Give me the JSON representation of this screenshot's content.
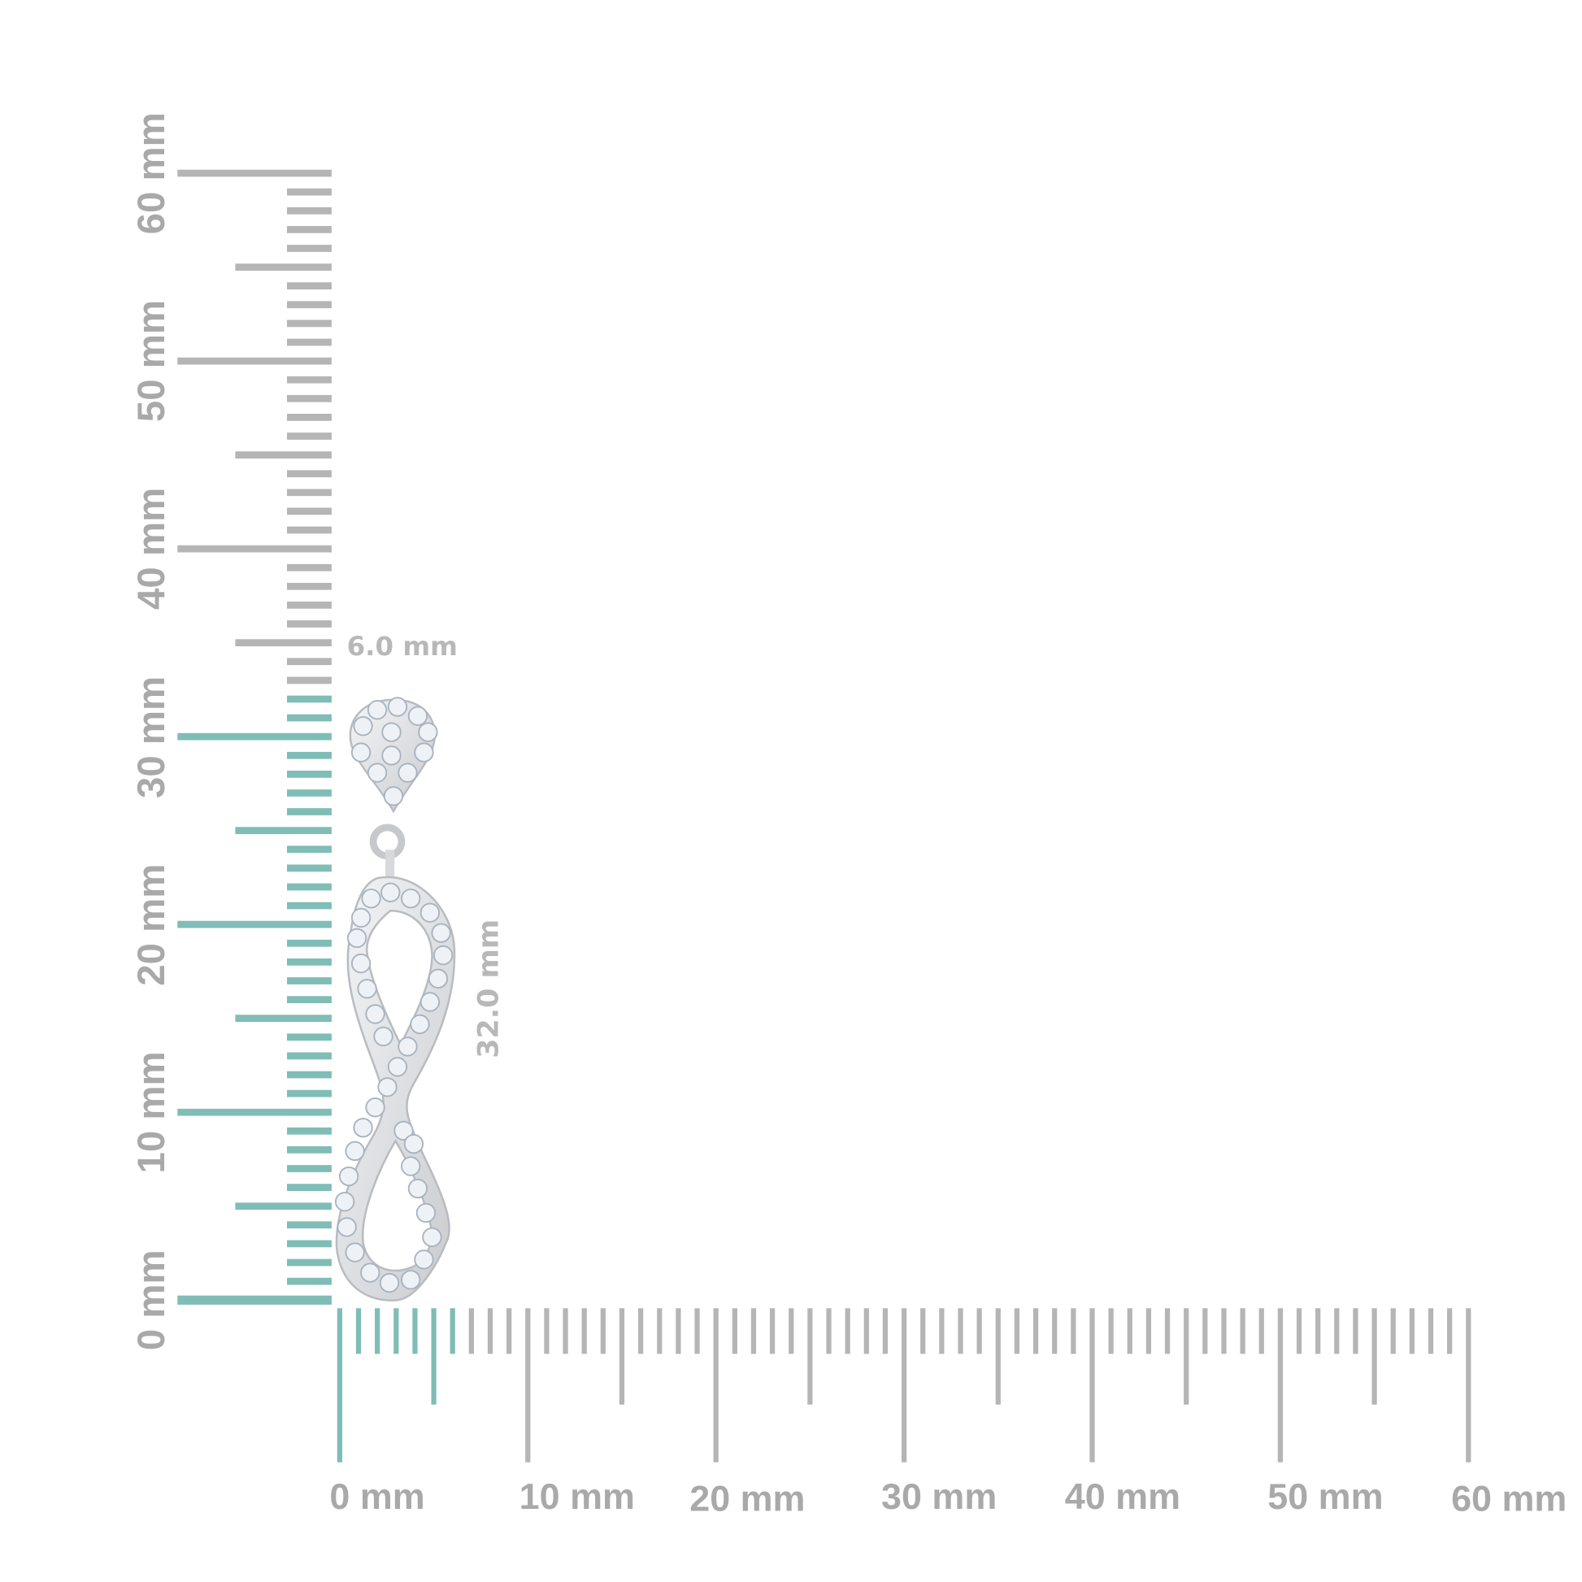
{
  "units": "mm",
  "colors": {
    "highlight": "#7fbdb6",
    "ruler": "#b5b5b5",
    "label": "#a9a9a9",
    "metal": "#dcdde0",
    "stone": "#eef2f6"
  },
  "vertical_ruler": {
    "min": 0,
    "max": 60,
    "major_step": 10,
    "half_step": 5,
    "minor_step": 1,
    "highlight_to": 32,
    "labels": [
      "0 mm",
      "10 mm",
      "20 mm",
      "30 mm",
      "40 mm",
      "50 mm",
      "60 mm"
    ]
  },
  "horizontal_ruler": {
    "min": 0,
    "max": 60,
    "major_step": 10,
    "half_step": 5,
    "minor_step": 1,
    "highlight_to": 6,
    "labels": [
      "0 mm",
      "10 mm",
      "20 mm",
      "30 mm",
      "40 mm",
      "50 mm",
      "60 mm"
    ]
  },
  "dimensions": {
    "width_label": "6.0 mm",
    "height_label": "32.0 mm"
  },
  "product": {
    "image": "infinity-drop-earring"
  }
}
